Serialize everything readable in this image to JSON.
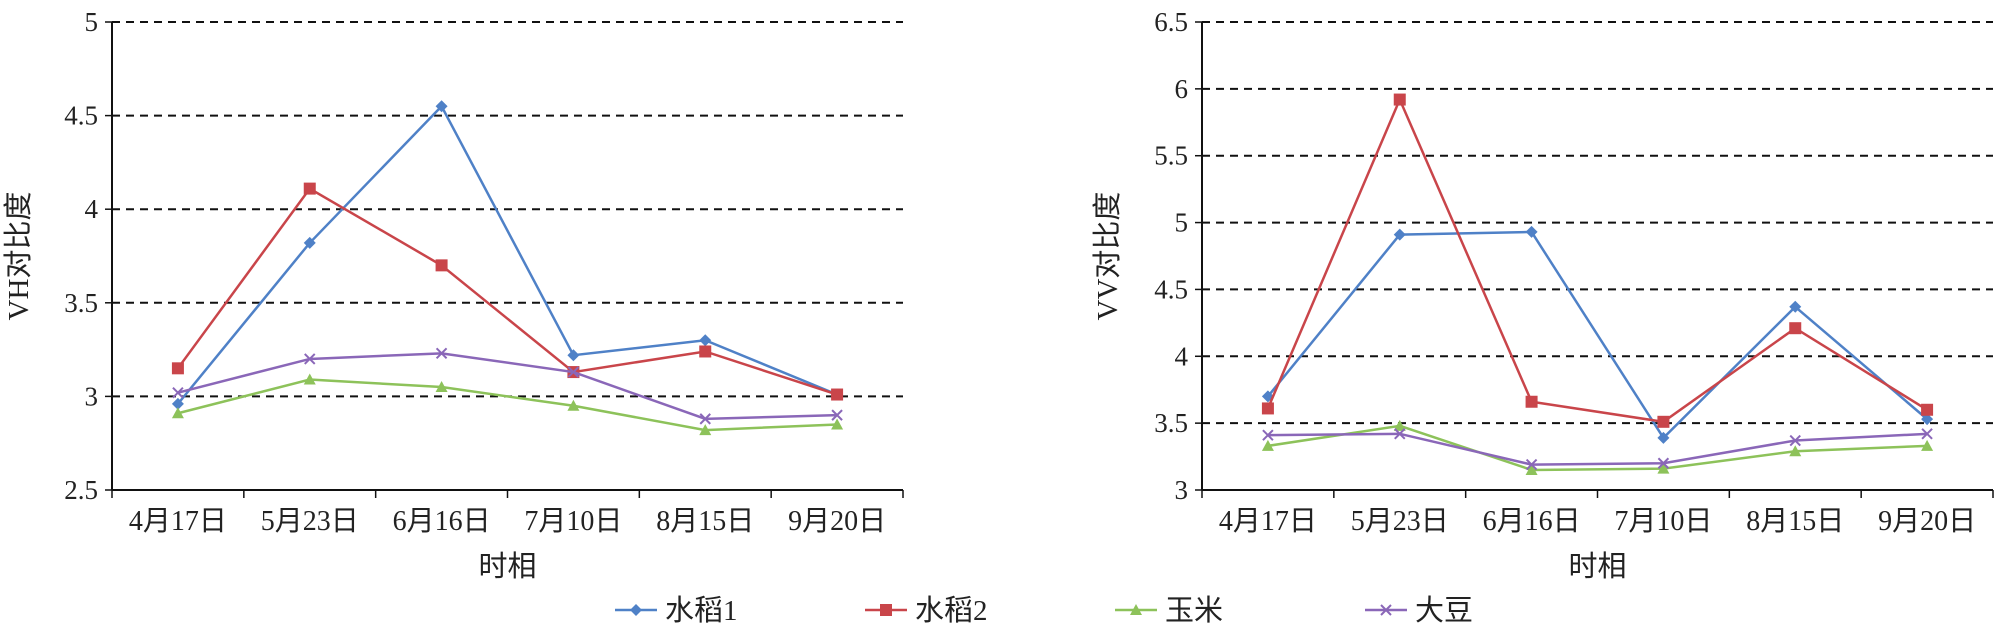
{
  "chart_data": [
    {
      "type": "line",
      "ylabel": "VH对比度",
      "xlabel": "时相",
      "categories": [
        "4月17日",
        "5月23日",
        "6月16日",
        "7月10日",
        "8月15日",
        "9月20日"
      ],
      "ylim": [
        2.5,
        5
      ],
      "yticks": [
        "2.5",
        "3",
        "3.5",
        "4",
        "4.5",
        "5"
      ],
      "grid": "horizontal dashed",
      "series": [
        {
          "name": "水稻1",
          "values": [
            2.96,
            3.82,
            4.55,
            3.22,
            3.3,
            3.01
          ]
        },
        {
          "name": "水稻2",
          "values": [
            3.15,
            4.11,
            3.7,
            3.13,
            3.24,
            3.01
          ]
        },
        {
          "name": "玉米",
          "values": [
            2.91,
            3.09,
            3.05,
            2.95,
            2.82,
            2.85
          ]
        },
        {
          "name": "大豆",
          "values": [
            3.02,
            3.2,
            3.23,
            3.13,
            2.88,
            2.9
          ]
        }
      ]
    },
    {
      "type": "line",
      "ylabel": "VV对比度",
      "xlabel": "时相",
      "categories": [
        "4月17日",
        "5月23日",
        "6月16日",
        "7月10日",
        "8月15日",
        "9月20日"
      ],
      "ylim": [
        3,
        6.5
      ],
      "yticks": [
        "3",
        "3.5",
        "4",
        "4.5",
        "5",
        "5.5",
        "6",
        "6.5"
      ],
      "grid": "horizontal dashed",
      "series": [
        {
          "name": "水稻1",
          "values": [
            3.7,
            4.91,
            4.93,
            3.39,
            4.37,
            3.53
          ]
        },
        {
          "name": "水稻2",
          "values": [
            3.61,
            5.92,
            3.66,
            3.51,
            4.21,
            3.6
          ]
        },
        {
          "name": "玉米",
          "values": [
            3.33,
            3.48,
            3.15,
            3.16,
            3.29,
            3.33
          ]
        },
        {
          "name": "大豆",
          "values": [
            3.41,
            3.42,
            3.19,
            3.2,
            3.37,
            3.42
          ]
        }
      ]
    }
  ],
  "legend": {
    "position": "bottom-center",
    "items": [
      {
        "label": "水稻1",
        "color": "#4f81c7",
        "marker": "diamond"
      },
      {
        "label": "水稻2",
        "color": "#c9454a",
        "marker": "square"
      },
      {
        "label": "玉米",
        "color": "#8dc25a",
        "marker": "triangle"
      },
      {
        "label": "大豆",
        "color": "#8a67b8",
        "marker": "x"
      }
    ]
  }
}
